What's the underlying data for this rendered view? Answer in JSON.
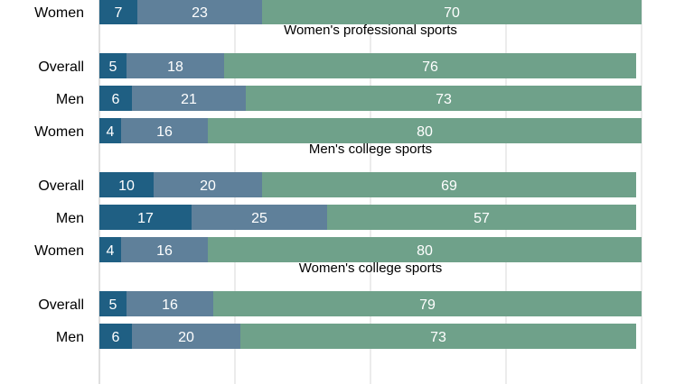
{
  "chart_data": {
    "type": "bar",
    "orientation": "horizontal",
    "stacked": true,
    "grid": true,
    "colors": [
      "#1f5f83",
      "#5f809a",
      "#6fa18a"
    ],
    "groups": [
      {
        "title": "",
        "rows": [
          {
            "label": "Women",
            "values": [
              7,
              23,
              70
            ]
          }
        ]
      },
      {
        "title": "Women's professional sports",
        "rows": [
          {
            "label": "Overall",
            "values": [
              5,
              18,
              76
            ]
          },
          {
            "label": "Men",
            "values": [
              6,
              21,
              73
            ]
          },
          {
            "label": "Women",
            "values": [
              4,
              16,
              80
            ]
          }
        ]
      },
      {
        "title": "Men's college sports",
        "rows": [
          {
            "label": "Overall",
            "values": [
              10,
              20,
              69
            ]
          },
          {
            "label": "Men",
            "values": [
              17,
              25,
              57
            ]
          },
          {
            "label": "Women",
            "values": [
              4,
              16,
              80
            ]
          }
        ]
      },
      {
        "title": "Women's college sports",
        "rows": [
          {
            "label": "Overall",
            "values": [
              5,
              16,
              79
            ]
          },
          {
            "label": "Men",
            "values": [
              6,
              20,
              73
            ]
          }
        ]
      }
    ],
    "xlim": [
      0,
      100
    ]
  }
}
